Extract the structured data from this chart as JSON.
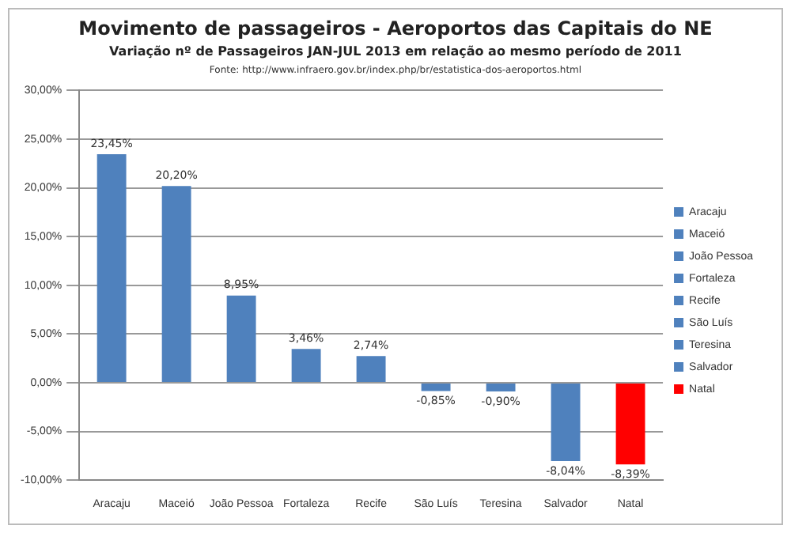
{
  "chart_data": {
    "type": "bar",
    "title": "Movimento de passageiros - Aeroportos das Capitais do NE",
    "subtitle": "Variação nº de Passageiros JAN-JUL 2013 em relação ao mesmo período de 2011",
    "annotations": [
      "Fonte: http://www.infraero.gov.br/index.php/br/estatistica-dos-aeroportos.html"
    ],
    "categories": [
      "Aracaju",
      "Maceió",
      "João Pessoa",
      "Fortaleza",
      "Recife",
      "São Luís",
      "Teresina",
      "Salvador",
      "Natal"
    ],
    "stacked": true,
    "series": [
      {
        "name": "Aracaju",
        "color": "#4f81bd",
        "values": [
          23.45,
          null,
          null,
          null,
          null,
          null,
          null,
          null,
          null
        ],
        "value_labels": [
          "23,45%",
          null,
          null,
          null,
          null,
          null,
          null,
          null,
          null
        ]
      },
      {
        "name": "Maceió",
        "color": "#4f81bd",
        "values": [
          null,
          20.2,
          null,
          null,
          null,
          null,
          null,
          null,
          null
        ],
        "value_labels": [
          null,
          "20,20%",
          null,
          null,
          null,
          null,
          null,
          null,
          null
        ]
      },
      {
        "name": "João Pessoa",
        "color": "#4f81bd",
        "values": [
          null,
          null,
          8.95,
          null,
          null,
          null,
          null,
          null,
          null
        ],
        "value_labels": [
          null,
          null,
          "8,95%",
          null,
          null,
          null,
          null,
          null,
          null
        ]
      },
      {
        "name": "Fortaleza",
        "color": "#4f81bd",
        "values": [
          null,
          null,
          null,
          3.46,
          null,
          null,
          null,
          null,
          null
        ],
        "value_labels": [
          null,
          null,
          null,
          "3,46%",
          null,
          null,
          null,
          null,
          null
        ]
      },
      {
        "name": "Recife",
        "color": "#4f81bd",
        "values": [
          null,
          null,
          null,
          null,
          2.74,
          null,
          null,
          null,
          null
        ],
        "value_labels": [
          null,
          null,
          null,
          null,
          "2,74%",
          null,
          null,
          null,
          null
        ]
      },
      {
        "name": "São Luís",
        "color": "#4f81bd",
        "values": [
          null,
          null,
          null,
          null,
          null,
          -0.85,
          null,
          null,
          null
        ],
        "value_labels": [
          null,
          null,
          null,
          null,
          null,
          "-0,85%",
          null,
          null,
          null
        ]
      },
      {
        "name": "Teresina",
        "color": "#4f81bd",
        "values": [
          null,
          null,
          null,
          null,
          null,
          null,
          -0.9,
          null,
          null
        ],
        "value_labels": [
          null,
          null,
          null,
          null,
          null,
          null,
          "-0,90%",
          null,
          null
        ]
      },
      {
        "name": "Salvador",
        "color": "#4f81bd",
        "values": [
          null,
          null,
          null,
          null,
          null,
          null,
          null,
          -8.04,
          null
        ],
        "value_labels": [
          null,
          null,
          null,
          null,
          null,
          null,
          null,
          "-8,04%",
          null
        ]
      },
      {
        "name": "Natal",
        "color": "#ff0000",
        "values": [
          null,
          null,
          null,
          null,
          null,
          null,
          null,
          null,
          -8.39
        ],
        "value_labels": [
          null,
          null,
          null,
          null,
          null,
          null,
          null,
          null,
          "-8,39%"
        ]
      }
    ],
    "ylim": [
      -10,
      30
    ],
    "yticks": [
      {
        "value": -10,
        "label": "-10,00%"
      },
      {
        "value": -5,
        "label": "-5,00%"
      },
      {
        "value": 0,
        "label": "0,00%"
      },
      {
        "value": 5,
        "label": "5,00%"
      },
      {
        "value": 10,
        "label": "10,00%"
      },
      {
        "value": 15,
        "label": "15,00%"
      },
      {
        "value": 20,
        "label": "20,00%"
      },
      {
        "value": 25,
        "label": "25,00%"
      },
      {
        "value": 30,
        "label": "30,00%"
      }
    ],
    "grid": "y",
    "legend": "right"
  }
}
